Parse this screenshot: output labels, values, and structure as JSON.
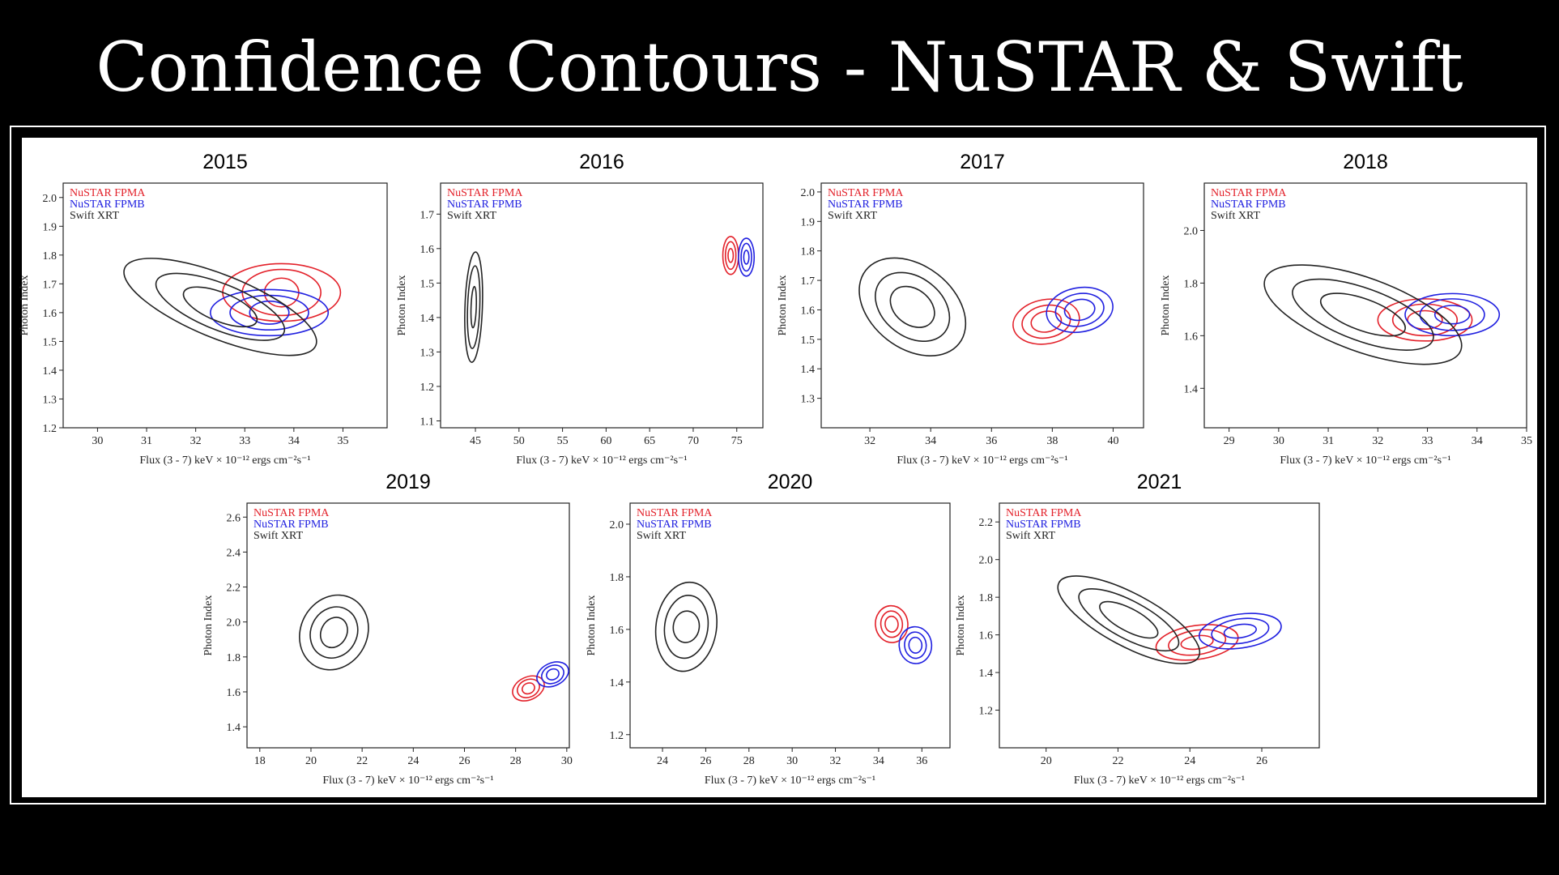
{
  "slide": {
    "title": "Confidence Contours - NuSTAR & Swift"
  },
  "colors": {
    "NuSTAR FPMA": "#e3212a",
    "NuSTAR FPMB": "#2020e0",
    "Swift XRT": "#222222"
  },
  "chart_data": [
    {
      "type": "scatter",
      "title": "2015",
      "xlabel": "Flux (3 - 7) keV × 10⁻¹² ergs cm⁻²s⁻¹",
      "ylabel": "Photon Index",
      "xlim": [
        29.3,
        35.9
      ],
      "ylim": [
        1.2,
        2.05
      ],
      "xticks": [
        30,
        31,
        32,
        33,
        34,
        35
      ],
      "yticks": [
        1.2,
        1.3,
        1.4,
        1.5,
        1.6,
        1.7,
        1.8,
        1.9,
        2.0
      ],
      "series": [
        {
          "name": "NuSTAR FPMA",
          "center": [
            33.75,
            1.67
          ],
          "sigma_x": [
            0.35,
            0.8,
            1.2
          ],
          "sigma_y": [
            0.05,
            0.08,
            0.1
          ],
          "rotation_deg": 0
        },
        {
          "name": "NuSTAR FPMB",
          "center": [
            33.5,
            1.6
          ],
          "sigma_x": [
            0.4,
            0.8,
            1.2
          ],
          "sigma_y": [
            0.04,
            0.06,
            0.08
          ],
          "rotation_deg": 0
        },
        {
          "name": "Swift XRT",
          "center": [
            32.5,
            1.62
          ],
          "sigma_x": [
            0.8,
            1.4,
            2.1
          ],
          "sigma_y": [
            0.05,
            0.08,
            0.11
          ],
          "rotation_deg": 22
        }
      ],
      "legend": "top-left"
    },
    {
      "type": "scatter",
      "title": "2016",
      "xlabel": "Flux (3 - 7) keV × 10⁻¹² ergs cm⁻²s⁻¹",
      "ylabel": "Photon Index",
      "xlim": [
        41,
        78
      ],
      "ylim": [
        1.08,
        1.79
      ],
      "xticks": [
        45,
        50,
        55,
        60,
        65,
        70,
        75
      ],
      "yticks": [
        1.1,
        1.2,
        1.3,
        1.4,
        1.5,
        1.6,
        1.7
      ],
      "series": [
        {
          "name": "NuSTAR FPMA",
          "center": [
            74.3,
            1.58
          ],
          "sigma_x": [
            0.3,
            0.6,
            0.9
          ],
          "sigma_y": [
            0.02,
            0.04,
            0.055
          ],
          "rotation_deg": 0
        },
        {
          "name": "NuSTAR FPMB",
          "center": [
            76.1,
            1.575
          ],
          "sigma_x": [
            0.3,
            0.6,
            0.9
          ],
          "sigma_y": [
            0.02,
            0.04,
            0.055
          ],
          "rotation_deg": 0
        },
        {
          "name": "Swift XRT",
          "center": [
            44.8,
            1.43
          ],
          "sigma_x": [
            0.3,
            0.7,
            1.0
          ],
          "sigma_y": [
            0.06,
            0.12,
            0.16
          ],
          "rotation_deg": 2
        }
      ],
      "legend": "top-left"
    },
    {
      "type": "scatter",
      "title": "2017",
      "xlabel": "Flux (3 - 7) keV × 10⁻¹² ergs cm⁻²s⁻¹",
      "ylabel": "Photon Index",
      "xlim": [
        30.4,
        41
      ],
      "ylim": [
        1.2,
        2.03
      ],
      "xticks": [
        32,
        34,
        36,
        38,
        40
      ],
      "yticks": [
        1.3,
        1.4,
        1.5,
        1.6,
        1.7,
        1.8,
        1.9,
        2.0
      ],
      "series": [
        {
          "name": "NuSTAR FPMA",
          "center": [
            37.8,
            1.56
          ],
          "sigma_x": [
            0.5,
            0.8,
            1.1
          ],
          "sigma_y": [
            0.035,
            0.055,
            0.075
          ],
          "rotation_deg": -10
        },
        {
          "name": "NuSTAR FPMB",
          "center": [
            38.9,
            1.6
          ],
          "sigma_x": [
            0.5,
            0.8,
            1.1
          ],
          "sigma_y": [
            0.035,
            0.055,
            0.075
          ],
          "rotation_deg": -10
        },
        {
          "name": "Swift XRT",
          "center": [
            33.4,
            1.61
          ],
          "sigma_x": [
            0.8,
            1.35,
            1.95
          ],
          "sigma_y": [
            0.06,
            0.1,
            0.14
          ],
          "rotation_deg": 38
        }
      ],
      "legend": "top-left"
    },
    {
      "type": "scatter",
      "title": "2018",
      "xlabel": "Flux (3 - 7) keV × 10⁻¹² ergs cm⁻²s⁻¹",
      "ylabel": "Photon Index",
      "xlim": [
        28.5,
        35
      ],
      "ylim": [
        1.25,
        2.18
      ],
      "xticks": [
        29,
        30,
        31,
        32,
        33,
        34,
        35
      ],
      "yticks": [
        1.4,
        1.6,
        1.8,
        2.0
      ],
      "series": [
        {
          "name": "NuSTAR FPMA",
          "center": [
            32.95,
            1.66
          ],
          "sigma_x": [
            0.35,
            0.65,
            0.95
          ],
          "sigma_y": [
            0.035,
            0.06,
            0.08
          ],
          "rotation_deg": 0
        },
        {
          "name": "NuSTAR FPMB",
          "center": [
            33.5,
            1.68
          ],
          "sigma_x": [
            0.35,
            0.65,
            0.95
          ],
          "sigma_y": [
            0.035,
            0.06,
            0.08
          ],
          "rotation_deg": 0
        },
        {
          "name": "Swift XRT",
          "center": [
            31.7,
            1.68
          ],
          "sigma_x": [
            0.9,
            1.5,
            2.1
          ],
          "sigma_y": [
            0.06,
            0.1,
            0.14
          ],
          "rotation_deg": 20
        }
      ],
      "legend": "top-left"
    },
    {
      "type": "scatter",
      "title": "2019",
      "xlabel": "Flux (3 - 7) keV × 10⁻¹² ergs cm⁻²s⁻¹",
      "ylabel": "Photon Index",
      "xlim": [
        17.5,
        30.1
      ],
      "ylim": [
        1.28,
        2.68
      ],
      "xticks": [
        18,
        20,
        22,
        24,
        26,
        28,
        30
      ],
      "yticks": [
        1.4,
        1.6,
        1.8,
        2.0,
        2.2,
        2.4,
        2.6
      ],
      "series": [
        {
          "name": "NuSTAR FPMA",
          "center": [
            28.5,
            1.62
          ],
          "sigma_x": [
            0.25,
            0.45,
            0.65
          ],
          "sigma_y": [
            0.03,
            0.05,
            0.065
          ],
          "rotation_deg": -25
        },
        {
          "name": "NuSTAR FPMB",
          "center": [
            29.45,
            1.7
          ],
          "sigma_x": [
            0.25,
            0.45,
            0.65
          ],
          "sigma_y": [
            0.03,
            0.05,
            0.065
          ],
          "rotation_deg": -25
        },
        {
          "name": "Swift XRT",
          "center": [
            20.9,
            1.94
          ],
          "sigma_x": [
            0.5,
            0.9,
            1.3
          ],
          "sigma_y": [
            0.09,
            0.15,
            0.22
          ],
          "rotation_deg": 28
        }
      ],
      "legend": "top-left"
    },
    {
      "type": "scatter",
      "title": "2020",
      "xlabel": "Flux (3 - 7) keV × 10⁻¹² ergs cm⁻²s⁻¹",
      "ylabel": "Photon Index",
      "xlim": [
        22.5,
        37.3
      ],
      "ylim": [
        1.15,
        2.08
      ],
      "xticks": [
        24,
        26,
        28,
        30,
        32,
        34,
        36
      ],
      "yticks": [
        1.2,
        1.4,
        1.6,
        1.8,
        2.0
      ],
      "series": [
        {
          "name": "NuSTAR FPMA",
          "center": [
            34.6,
            1.62
          ],
          "sigma_x": [
            0.3,
            0.5,
            0.75
          ],
          "sigma_y": [
            0.03,
            0.05,
            0.07
          ],
          "rotation_deg": -5
        },
        {
          "name": "NuSTAR FPMB",
          "center": [
            35.7,
            1.54
          ],
          "sigma_x": [
            0.3,
            0.5,
            0.75
          ],
          "sigma_y": [
            0.03,
            0.05,
            0.07
          ],
          "rotation_deg": -5
        },
        {
          "name": "Swift XRT",
          "center": [
            25.1,
            1.61
          ],
          "sigma_x": [
            0.6,
            1.0,
            1.4
          ],
          "sigma_y": [
            0.06,
            0.12,
            0.17
          ],
          "rotation_deg": 8
        }
      ],
      "legend": "top-left"
    },
    {
      "type": "scatter",
      "title": "2021",
      "xlabel": "Flux (3 - 7) keV × 10⁻¹² ergs cm⁻²s⁻¹",
      "ylabel": "Photon Index",
      "xlim": [
        18.7,
        27.6
      ],
      "ylim": [
        1.0,
        2.3
      ],
      "xticks": [
        20,
        22,
        24,
        26
      ],
      "yticks": [
        1.2,
        1.4,
        1.6,
        1.8,
        2.0,
        2.2
      ],
      "series": [
        {
          "name": "NuSTAR FPMA",
          "center": [
            24.2,
            1.56
          ],
          "sigma_x": [
            0.45,
            0.8,
            1.15
          ],
          "sigma_y": [
            0.035,
            0.065,
            0.09
          ],
          "rotation_deg": -8
        },
        {
          "name": "NuSTAR FPMB",
          "center": [
            25.4,
            1.62
          ],
          "sigma_x": [
            0.45,
            0.8,
            1.15
          ],
          "sigma_y": [
            0.035,
            0.065,
            0.09
          ],
          "rotation_deg": -8
        },
        {
          "name": "Swift XRT",
          "center": [
            22.3,
            1.68
          ],
          "sigma_x": [
            0.9,
            1.55,
            2.2
          ],
          "sigma_y": [
            0.06,
            0.1,
            0.14
          ],
          "rotation_deg": 28
        }
      ],
      "legend": "top-left"
    }
  ]
}
